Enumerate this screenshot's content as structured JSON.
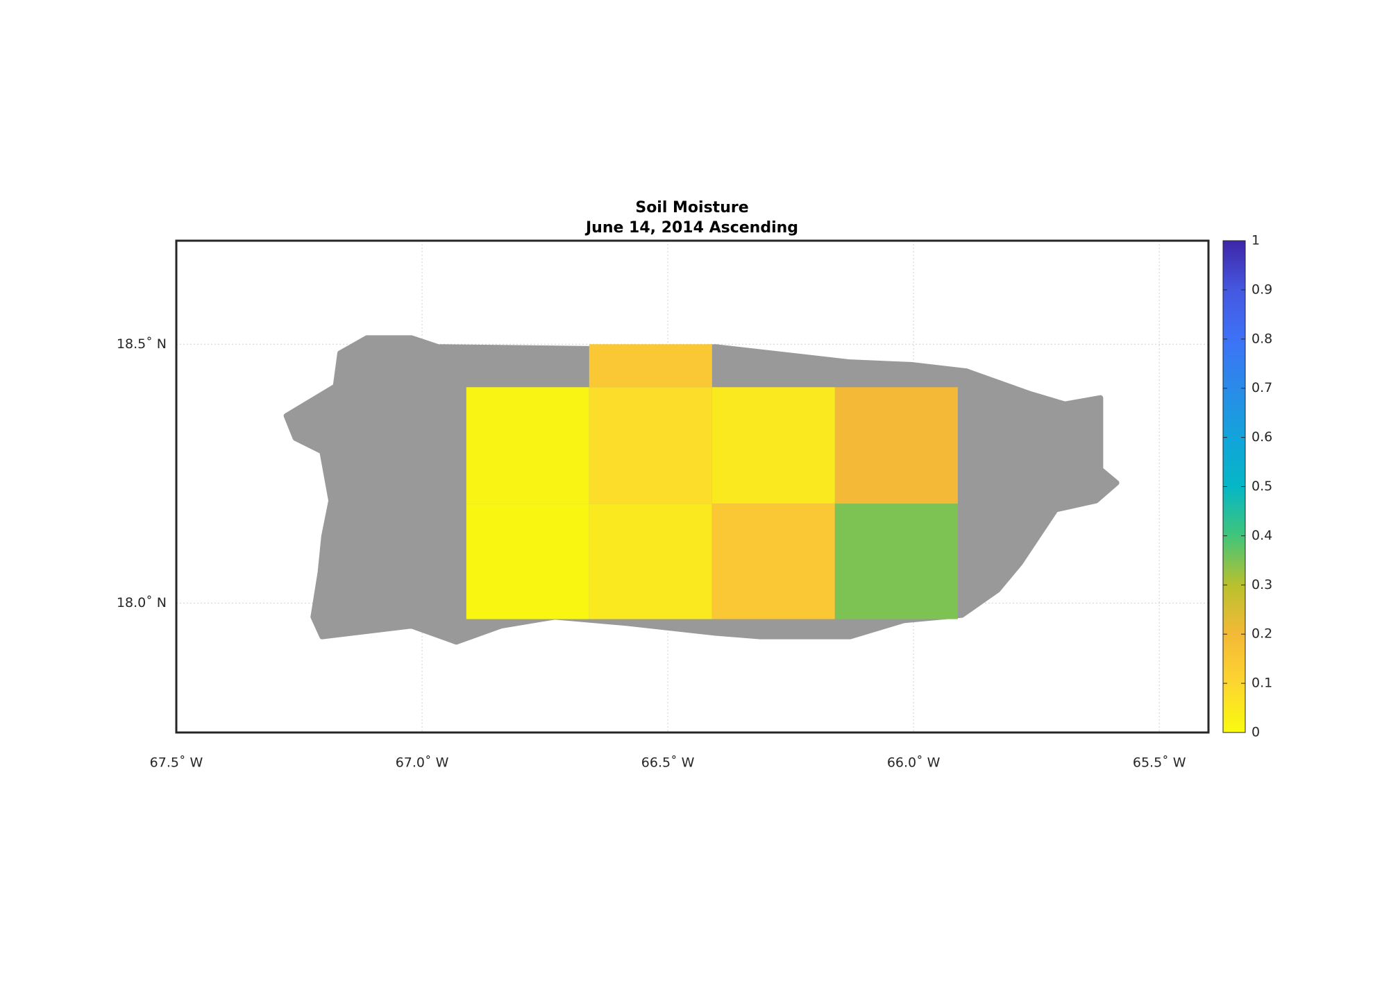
{
  "chart_data": {
    "type": "heatmap",
    "title": "Soil Moisture",
    "subtitle": "June 14, 2014 Ascending",
    "xlim": [
      -67.5,
      -65.4
    ],
    "ylim": [
      17.75,
      18.7
    ],
    "xticks": [
      {
        "value": -67.5,
        "label": "67.5˚ W"
      },
      {
        "value": -67.0,
        "label": "67.0˚ W"
      },
      {
        "value": -66.5,
        "label": "66.5˚ W"
      },
      {
        "value": -66.0,
        "label": "66.0˚ W"
      },
      {
        "value": -65.5,
        "label": "65.5˚ W"
      }
    ],
    "yticks": [
      {
        "value": 18.0,
        "label": "18.0˚ N"
      },
      {
        "value": 18.5,
        "label": "18.5˚ N"
      }
    ],
    "grid": true,
    "land_color": "#999999",
    "cells": [
      {
        "lon": [
          -66.66,
          -66.41
        ],
        "lat": [
          18.417,
          18.5
        ],
        "value": 0.15
      },
      {
        "lon": [
          -66.91,
          -66.66
        ],
        "lat": [
          18.192,
          18.417
        ],
        "value": 0.02
      },
      {
        "lon": [
          -66.66,
          -66.41
        ],
        "lat": [
          18.192,
          18.417
        ],
        "value": 0.08
      },
      {
        "lon": [
          -66.41,
          -66.16
        ],
        "lat": [
          18.192,
          18.417
        ],
        "value": 0.05
      },
      {
        "lon": [
          -66.16,
          -65.91
        ],
        "lat": [
          18.192,
          18.417
        ],
        "value": 0.2
      },
      {
        "lon": [
          -66.91,
          -66.66
        ],
        "lat": [
          17.969,
          18.192
        ],
        "value": 0.01
      },
      {
        "lon": [
          -66.66,
          -66.41
        ],
        "lat": [
          17.969,
          18.192
        ],
        "value": 0.05
      },
      {
        "lon": [
          -66.41,
          -66.16
        ],
        "lat": [
          17.969,
          18.192
        ],
        "value": 0.15
      },
      {
        "lon": [
          -66.16,
          -65.91
        ],
        "lat": [
          17.969,
          18.192
        ],
        "value": 0.35
      }
    ],
    "clim": [
      0,
      1
    ],
    "cticks": [
      0,
      0.1,
      0.2,
      0.3,
      0.4,
      0.5,
      0.6,
      0.7,
      0.8,
      0.9,
      1
    ],
    "colormap": [
      "#f9fb0e",
      "#fdd631",
      "#f4b936",
      "#b9c12e",
      "#40c57a",
      "#05b7c6",
      "#12a4db",
      "#2a8be8",
      "#3d72f7",
      "#4558e0",
      "#3e26a8"
    ]
  }
}
